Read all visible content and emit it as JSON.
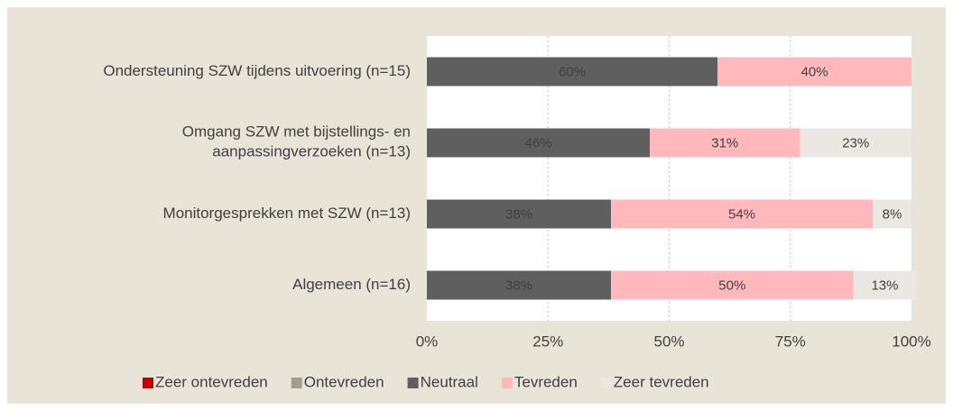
{
  "chart_data": {
    "type": "stacked-bar-horizontal",
    "categories": [
      "Ondersteuning SZW tijdens uitvoering (n=15)",
      "Omgang SZW met bijstellings- en\naanpassingverzoeken (n=13)",
      "Monitorgesprekken met SZW (n=13)",
      "Algemeen (n=16)"
    ],
    "series": [
      {
        "name": "Zeer ontevreden",
        "color": "#c00000",
        "values": [
          0,
          0,
          0,
          0
        ]
      },
      {
        "name": "Ontevreden",
        "color": "#a39d8f",
        "values": [
          0,
          0,
          0,
          0
        ]
      },
      {
        "name": "Neutraal",
        "color": "#5f5f5f",
        "values": [
          60,
          46,
          38,
          38
        ],
        "value_labels": [
          "60%",
          "46%",
          "38%",
          "38%"
        ]
      },
      {
        "name": "Tevreden",
        "color": "#ffb9bc",
        "values": [
          40,
          31,
          54,
          50
        ],
        "value_labels": [
          "40%",
          "31%",
          "54%",
          "50%"
        ]
      },
      {
        "name": "Zeer tevreden",
        "color": "#ebe8e3",
        "values": [
          0,
          23,
          8,
          13
        ],
        "value_labels": [
          null,
          "23%",
          "8%",
          "13%"
        ]
      }
    ],
    "xlim": [
      0,
      100
    ],
    "xticks": [
      {
        "value": 0,
        "label": "0%"
      },
      {
        "value": 25,
        "label": "25%"
      },
      {
        "value": 50,
        "label": "50%"
      },
      {
        "value": 75,
        "label": "75%"
      },
      {
        "value": 100,
        "label": "100%"
      }
    ],
    "grid": true,
    "legend": "bottom"
  }
}
